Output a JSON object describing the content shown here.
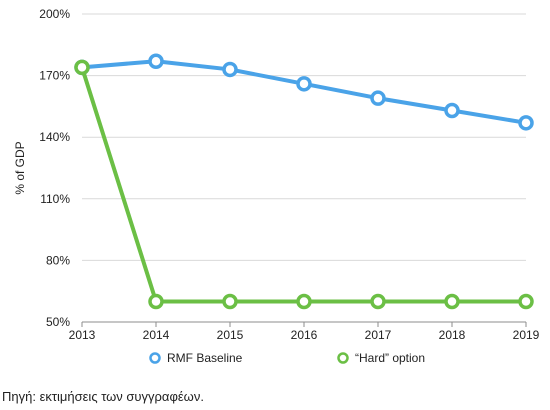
{
  "chart_data": {
    "type": "line",
    "title": "",
    "xlabel": "",
    "ylabel": "% of GDP",
    "x": [
      "2013",
      "2014",
      "2015",
      "2016",
      "2017",
      "2018",
      "2019"
    ],
    "ylim": [
      50,
      200
    ],
    "yticks": [
      50,
      80,
      110,
      140,
      170,
      200
    ],
    "ytick_labels": [
      "50%",
      "80%",
      "110%",
      "140%",
      "170%",
      "200%"
    ],
    "grid": true,
    "legend_position": "bottom",
    "series": [
      {
        "name": "RMF Baseline",
        "color": "#4aa3e8",
        "values": [
          174,
          177,
          173,
          166,
          159,
          153,
          147
        ]
      },
      {
        "name": "“Hard” option",
        "color": "#6bbf45",
        "values": [
          174,
          60,
          60,
          60,
          60,
          60,
          60
        ]
      }
    ]
  },
  "source_note": "Πηγή: εκτιμήσεις των συγγραφέων."
}
